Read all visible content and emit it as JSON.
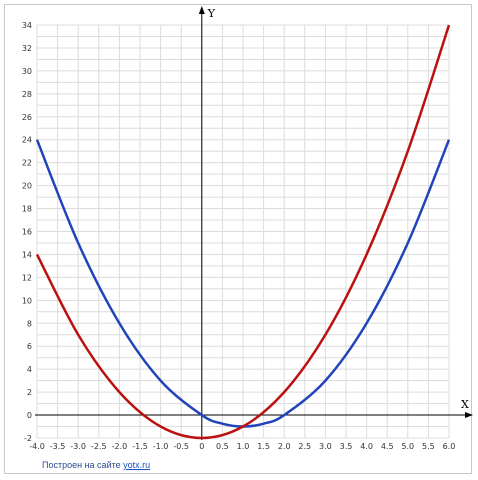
{
  "chart_data": {
    "type": "line",
    "xlabel": "X",
    "ylabel": "Y",
    "xlim": [
      -4.0,
      6.0
    ],
    "ylim": [
      -2,
      34
    ],
    "x_ticks": [
      -4.0,
      -3.5,
      -3.0,
      -2.5,
      -2.0,
      -1.5,
      -1.0,
      -0.5,
      0,
      0.5,
      1.0,
      1.5,
      2.0,
      2.5,
      3.0,
      3.5,
      4.0,
      4.5,
      5.0,
      5.5,
      6.0
    ],
    "x_tick_labels": [
      "-4.0",
      "-3.5",
      "-3.0",
      "-2.5",
      "-2.0",
      "-1.5",
      "-1.0",
      "-0.5",
      "0",
      "0.5",
      "1.0",
      "1.5",
      "2.0",
      "2.5",
      "3.0",
      "3.5",
      "4.0",
      "4.5",
      "5.0",
      "5.5",
      "6.0"
    ],
    "y_ticks": [
      -2,
      0,
      2,
      4,
      6,
      8,
      10,
      12,
      14,
      16,
      18,
      20,
      22,
      24,
      26,
      28,
      30,
      32,
      34
    ],
    "y_tick_labels": [
      "-2",
      "0",
      "2",
      "4",
      "6",
      "8",
      "10",
      "12",
      "14",
      "16",
      "18",
      "20",
      "22",
      "24",
      "26",
      "28",
      "30",
      "32",
      "34"
    ],
    "grid": true,
    "series": [
      {
        "color": "#2244bb",
        "points": [
          [
            -4.0,
            24
          ],
          [
            -3.0,
            15
          ],
          [
            -2.0,
            8
          ],
          [
            -1.0,
            3
          ],
          [
            0,
            0
          ],
          [
            0.5,
            -0.75
          ],
          [
            1.0,
            -1
          ],
          [
            1.5,
            -0.75
          ],
          [
            2.0,
            0
          ],
          [
            3.0,
            3
          ],
          [
            4.0,
            8
          ],
          [
            5.0,
            15
          ],
          [
            6.0,
            24
          ]
        ]
      },
      {
        "color": "#bb1111",
        "points": [
          [
            -4.0,
            14
          ],
          [
            -3.0,
            7
          ],
          [
            -2.0,
            2
          ],
          [
            -1.0,
            -1
          ],
          [
            0,
            -2
          ],
          [
            1.0,
            -1
          ],
          [
            2.0,
            2
          ],
          [
            3.0,
            7
          ],
          [
            4.0,
            14
          ],
          [
            5.0,
            23
          ],
          [
            6.0,
            34
          ]
        ]
      }
    ]
  },
  "footer": {
    "credit_text": "Построен на сайте ",
    "credit_link": "yotx.ru"
  }
}
